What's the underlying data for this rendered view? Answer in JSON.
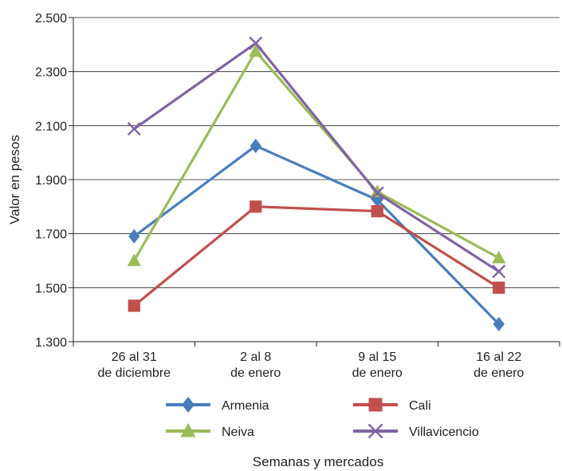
{
  "chart_data": {
    "type": "line",
    "categories": [
      [
        "26 al 31",
        "de diciembre"
      ],
      [
        "2 al 8",
        "de enero"
      ],
      [
        "9 al 15",
        "de enero"
      ],
      [
        "16 al 22",
        "de enero"
      ]
    ],
    "ylabel": "Valor en pesos",
    "xlabel": "Semanas y mercados",
    "ylim": [
      1300,
      2500
    ],
    "yticks": [
      1300,
      1500,
      1700,
      1900,
      2100,
      2300,
      2500
    ],
    "ytick_labels": [
      "1.300",
      "1.500",
      "1.700",
      "1.900",
      "2.100",
      "2.300",
      "2.500"
    ],
    "grid": "horizontal",
    "legend_position": "bottom",
    "series": [
      {
        "name": "Armenia",
        "values": [
          1690,
          2025,
          1825,
          1365
        ],
        "color": "#4a7ebb",
        "marker": "diamond"
      },
      {
        "name": "Cali",
        "values": [
          1433,
          1800,
          1783,
          1500
        ],
        "color": "#c0504d",
        "marker": "square"
      },
      {
        "name": "Neiva",
        "values": [
          1600,
          2375,
          1855,
          1610
        ],
        "color": "#9bbb59",
        "marker": "triangle"
      },
      {
        "name": "Villavicencio",
        "values": [
          2088,
          2405,
          1850,
          1560
        ],
        "color": "#8064a2",
        "marker": "x"
      }
    ]
  }
}
